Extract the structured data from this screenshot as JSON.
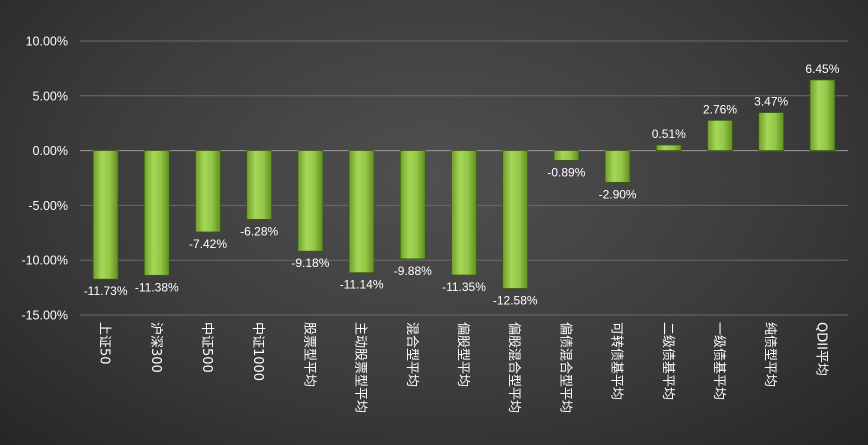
{
  "chart_data": {
    "type": "bar",
    "title": "",
    "xlabel": "",
    "ylabel": "",
    "ylim": [
      -15,
      10
    ],
    "yticks": [
      10,
      5,
      0,
      -5,
      -10,
      -15
    ],
    "ytick_labels": [
      "10.00%",
      "5.00%",
      "0.00%",
      "-5.00%",
      "-10.00%",
      "-15.00%"
    ],
    "grid": true,
    "bar_color": "#8cc43a",
    "categories": [
      "上证50",
      "沪深300",
      "中证500",
      "中证1000",
      "股票型平均",
      "主动股票型平均",
      "混合型平均",
      "偏股型平均",
      "偏股混合型平均",
      "偏债混合型平均",
      "可转债基平均",
      "二级债基平均",
      "一级债基平均",
      "纯债型平均",
      "QDII平均"
    ],
    "values": [
      -11.73,
      -11.38,
      -7.42,
      -6.28,
      -9.18,
      -11.14,
      -9.88,
      -11.35,
      -12.58,
      -0.89,
      -2.9,
      0.51,
      2.76,
      3.47,
      6.45
    ],
    "data_labels": [
      "-11.73%",
      "-11.38%",
      "-7.42%",
      "-6.28%",
      "-9.18%",
      "-11.14%",
      "-9.88%",
      "-11.35%",
      "-12.58%",
      "-0.89%",
      "-2.90%",
      "0.51%",
      "2.76%",
      "3.47%",
      "6.45%"
    ]
  }
}
